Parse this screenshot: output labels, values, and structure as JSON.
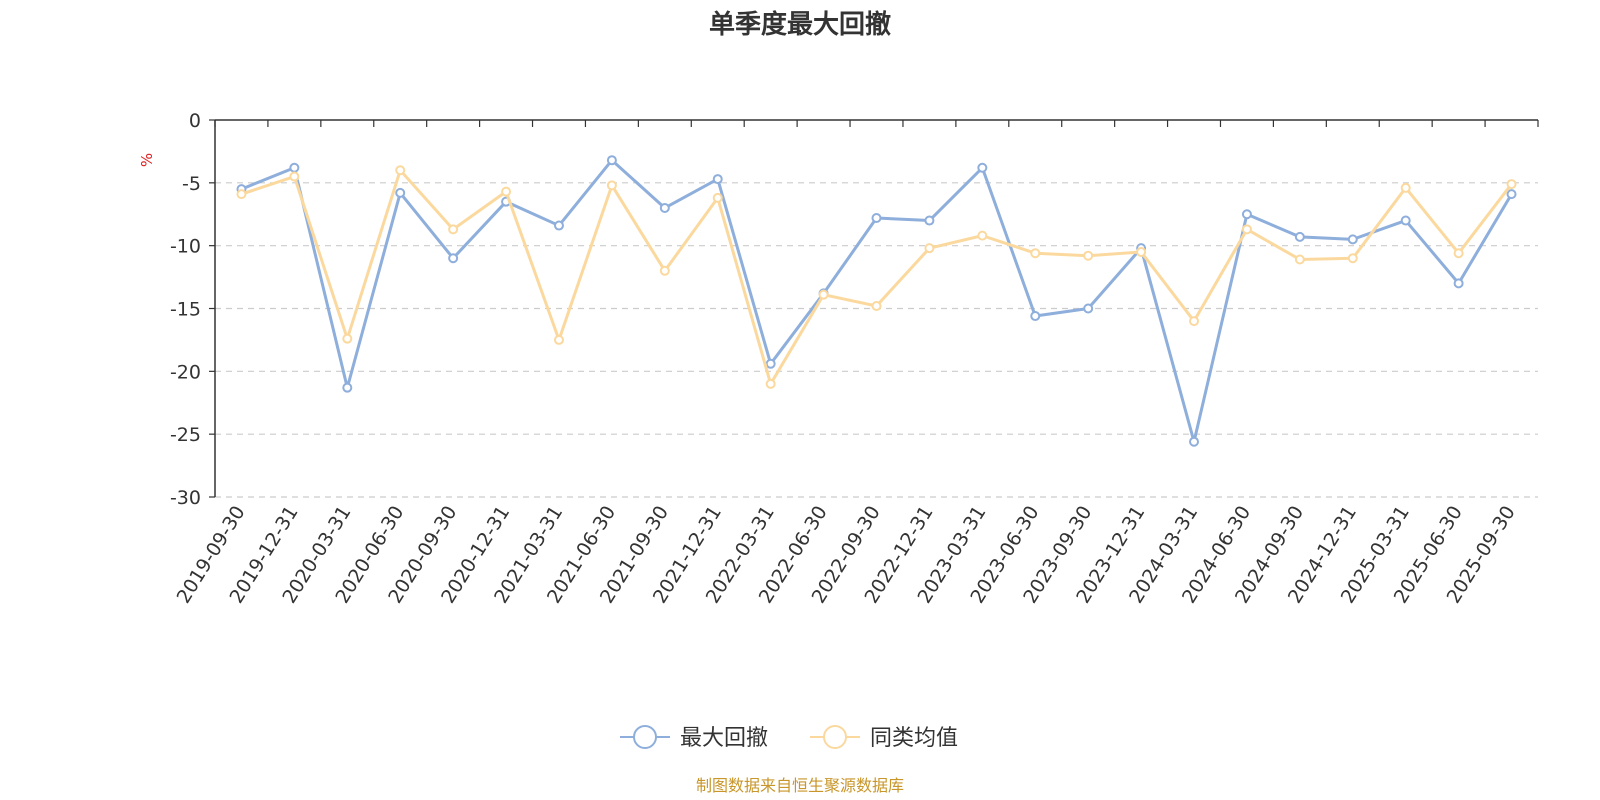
{
  "chart_data": {
    "type": "line",
    "title": "单季度最大回撤",
    "ylabel": "%",
    "ylim": [
      -30,
      0
    ],
    "yticks": [
      0,
      -5,
      -10,
      -15,
      -20,
      -25,
      -30
    ],
    "grid": true,
    "legend_position": "bottom-center",
    "categories": [
      "2019-09-30",
      "2019-12-31",
      "2020-03-31",
      "2020-06-30",
      "2020-09-30",
      "2020-12-31",
      "2021-03-31",
      "2021-06-30",
      "2021-09-30",
      "2021-12-31",
      "2022-03-31",
      "2022-06-30",
      "2022-09-30",
      "2022-12-31",
      "2023-03-31",
      "2023-06-30",
      "2023-09-30",
      "2023-12-31",
      "2024-03-31",
      "2024-06-30",
      "2024-09-30",
      "2024-12-31",
      "2025-03-31",
      "2025-06-30",
      "2025-09-30"
    ],
    "series": [
      {
        "name": "最大回撤",
        "color": "#8eaedb",
        "values": [
          -5.5,
          -3.8,
          -21.3,
          -5.8,
          -11.0,
          -6.5,
          -8.4,
          -3.2,
          -7.0,
          -4.7,
          -19.4,
          -13.8,
          -7.8,
          -8.0,
          -3.8,
          -15.6,
          -15.0,
          -10.2,
          -25.6,
          -7.5,
          -9.3,
          -9.5,
          -8.0,
          -13.0,
          -5.9
        ]
      },
      {
        "name": "同类均值",
        "color": "#fbd99e",
        "values": [
          -5.9,
          -4.5,
          -17.4,
          -4.0,
          -8.7,
          -5.7,
          -17.5,
          -5.2,
          -12.0,
          -6.2,
          -21.0,
          -13.9,
          -14.8,
          -10.2,
          -9.2,
          -10.6,
          -10.8,
          -10.5,
          -16.0,
          -8.7,
          -11.1,
          -11.0,
          -5.4,
          -10.6,
          -5.1
        ]
      }
    ]
  },
  "footer": {
    "source": "制图数据来自恒生聚源数据库"
  }
}
